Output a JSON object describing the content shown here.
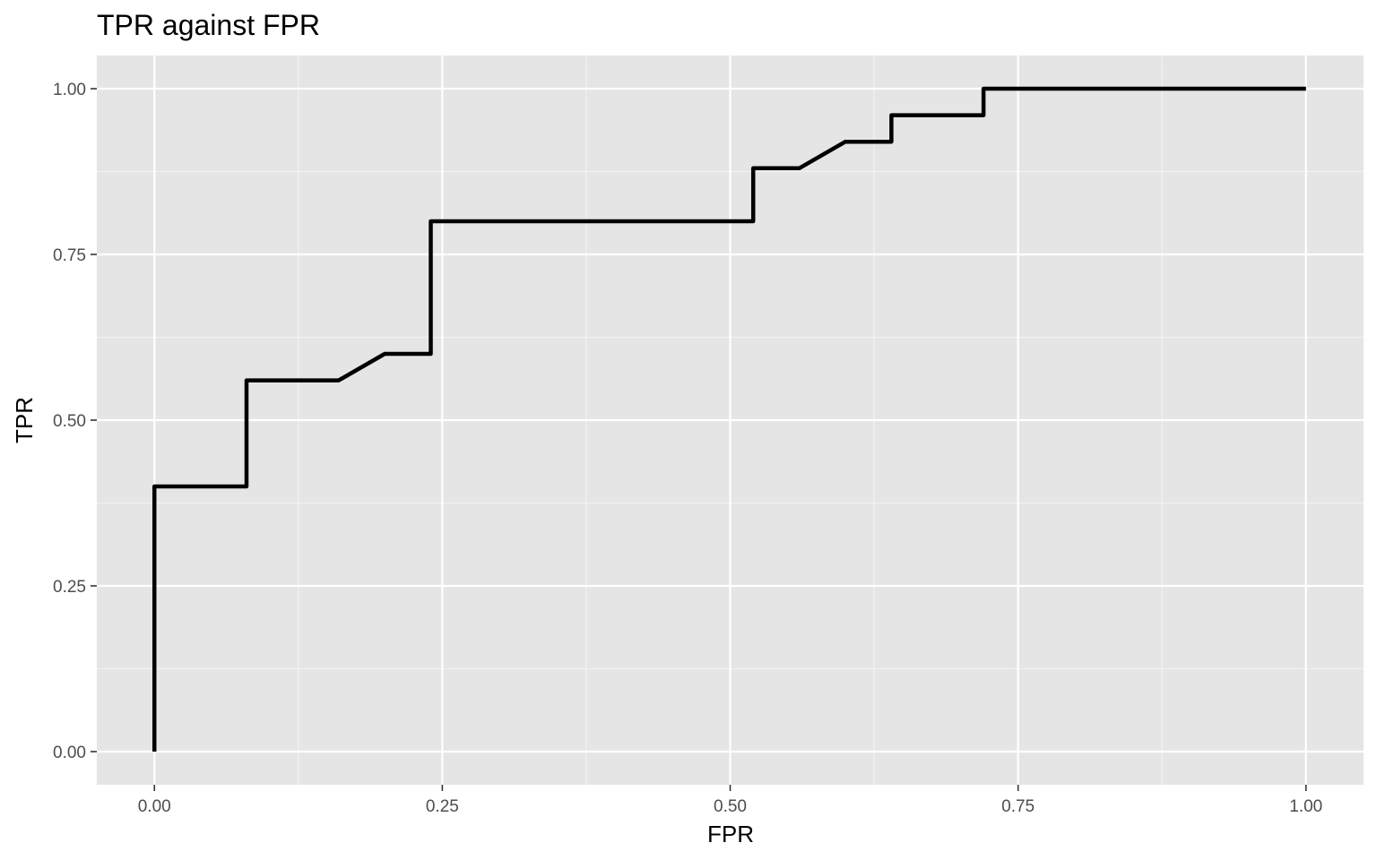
{
  "chart_data": {
    "type": "line",
    "title": "TPR against FPR",
    "xlabel": "FPR",
    "ylabel": "TPR",
    "xlim": [
      -0.05,
      1.05
    ],
    "ylim": [
      -0.05,
      1.05
    ],
    "x_ticks": [
      0,
      0.25,
      0.5,
      0.75,
      1
    ],
    "x_tick_labels": [
      "0.00",
      "0.25",
      "0.50",
      "0.75",
      "1.00"
    ],
    "y_ticks": [
      0,
      0.25,
      0.5,
      0.75,
      1
    ],
    "y_tick_labels": [
      "0.00",
      "0.25",
      "0.50",
      "0.75",
      "1.00"
    ],
    "grid": true,
    "colors": {
      "panel_background": "#e5e5e5",
      "grid_major": "#ffffff",
      "grid_minor": "#f2f2f2",
      "line": "#000000",
      "tick_text": "#4d4d4d",
      "tick_mark": "#333333"
    },
    "series": [
      {
        "x": [
          0,
          0,
          0.08,
          0.08,
          0.16,
          0.2,
          0.24,
          0.24,
          0.52,
          0.52,
          0.56,
          0.6,
          0.64,
          0.64,
          0.72,
          0.72,
          1.0
        ],
        "y": [
          0,
          0.4,
          0.4,
          0.56,
          0.56,
          0.6,
          0.6,
          0.8,
          0.8,
          0.88,
          0.88,
          0.92,
          0.92,
          0.96,
          0.96,
          1.0,
          1.0
        ]
      }
    ]
  }
}
